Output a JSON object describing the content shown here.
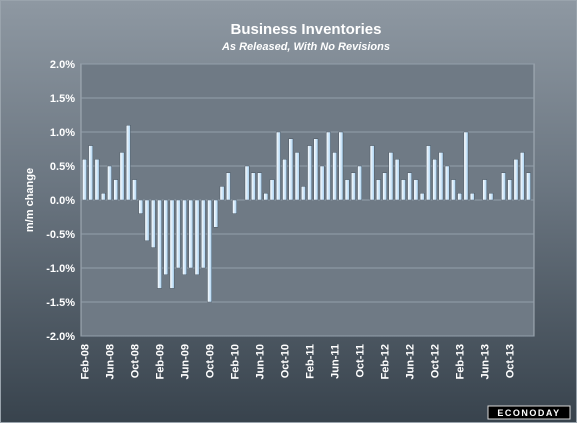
{
  "chart_data": {
    "type": "bar",
    "title": "Business Inventories",
    "subtitle": "As Released, With No Revisions",
    "ylabel": "m/m change",
    "xlabel": "",
    "ylim": [
      -2.0,
      2.0
    ],
    "y_ticks": [
      "2.0%",
      "1.5%",
      "1.0%",
      "0.5%",
      "0.0%",
      "-0.5%",
      "-1.0%",
      "-1.5%",
      "-2.0%"
    ],
    "y_tick_values": [
      2.0,
      1.5,
      1.0,
      0.5,
      0.0,
      -0.5,
      -1.0,
      -1.5,
      -2.0
    ],
    "x_tick_labels": [
      "Feb-08",
      "Jun-08",
      "Oct-08",
      "Feb-09",
      "Jun-09",
      "Oct-09",
      "Feb-10",
      "Jun-10",
      "Oct-10",
      "Feb-11",
      "Jun-11",
      "Oct-11",
      "Feb-12",
      "Jun-12",
      "Oct-12",
      "Feb-13",
      "Jun-13",
      "Oct-13"
    ],
    "x_tick_months": [
      "2008-02",
      "2008-06",
      "2008-10",
      "2009-02",
      "2009-06",
      "2009-10",
      "2010-02",
      "2010-06",
      "2010-10",
      "2011-02",
      "2011-06",
      "2011-10",
      "2012-02",
      "2012-06",
      "2012-10",
      "2013-02",
      "2013-06",
      "2013-10"
    ],
    "first_month": "2008-02",
    "values": [
      0.6,
      0.8,
      0.6,
      0.1,
      0.5,
      0.3,
      0.7,
      1.1,
      0.3,
      -0.2,
      -0.6,
      -0.7,
      -1.3,
      -1.1,
      -1.3,
      -1.0,
      -1.1,
      -1.0,
      -1.1,
      -1.0,
      -1.5,
      -0.4,
      0.2,
      0.4,
      -0.2,
      0.0,
      0.5,
      0.4,
      0.4,
      0.1,
      0.3,
      1.0,
      0.6,
      0.9,
      0.7,
      0.2,
      0.8,
      0.9,
      0.5,
      1.0,
      0.7,
      1.0,
      0.3,
      0.4,
      0.5,
      0.0,
      0.8,
      0.3,
      0.4,
      0.7,
      0.6,
      0.3,
      0.4,
      0.3,
      0.1,
      0.8,
      0.6,
      0.7,
      0.5,
      0.3,
      0.1,
      1.0,
      0.1,
      0.0,
      0.3,
      0.1,
      0.0,
      0.4,
      0.3,
      0.6,
      0.7,
      0.4
    ],
    "grid": true,
    "legend": "none",
    "bar_color_top": "#ffffff",
    "bar_color_bottom": "#a9d2f2",
    "plot_background": "#6f7a85",
    "grid_color": "#93a0ab"
  },
  "logo": {
    "text": "ECONODAY"
  }
}
